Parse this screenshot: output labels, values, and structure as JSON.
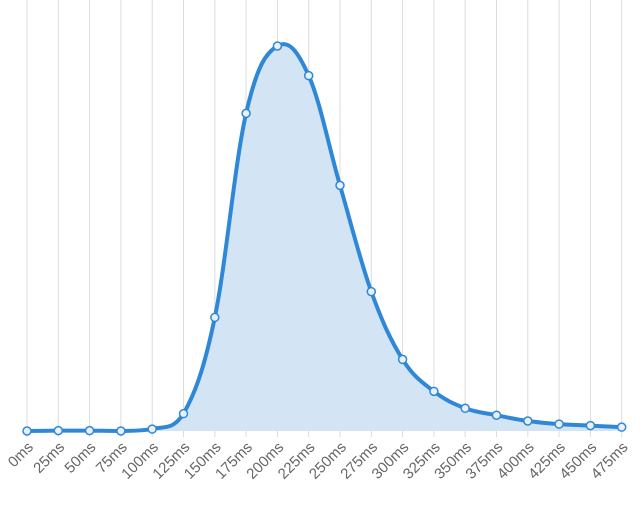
{
  "chart_data": {
    "type": "area",
    "title": "",
    "xlabel": "",
    "ylabel": "",
    "x": [
      "0ms",
      "25ms",
      "50ms",
      "75ms",
      "100ms",
      "125ms",
      "150ms",
      "175ms",
      "200ms",
      "225ms",
      "250ms",
      "275ms",
      "300ms",
      "325ms",
      "350ms",
      "375ms",
      "400ms",
      "425ms",
      "450ms",
      "475ms"
    ],
    "values": [
      0.0,
      0.1,
      0.1,
      0.0,
      0.5,
      4.5,
      29.5,
      82.5,
      100.0,
      92.3,
      63.8,
      36.2,
      18.6,
      10.3,
      5.9,
      4.1,
      2.6,
      1.8,
      1.4,
      1.0
    ],
    "ylim": [
      0,
      100
    ],
    "grid": "vertical",
    "legend": "none",
    "colors": {
      "line": "#2f88d6",
      "fill": "#d3e4f5",
      "grid": "#dcdcdc",
      "ticks": "#666666"
    }
  }
}
